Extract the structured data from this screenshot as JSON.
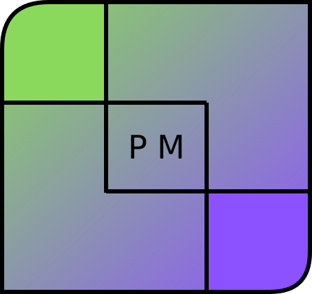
{
  "logo": {
    "monogram": "PM",
    "colors": {
      "green": "#8ad85c",
      "purple": "#8c52ff",
      "outline": "#000000",
      "text": "#000000"
    }
  }
}
